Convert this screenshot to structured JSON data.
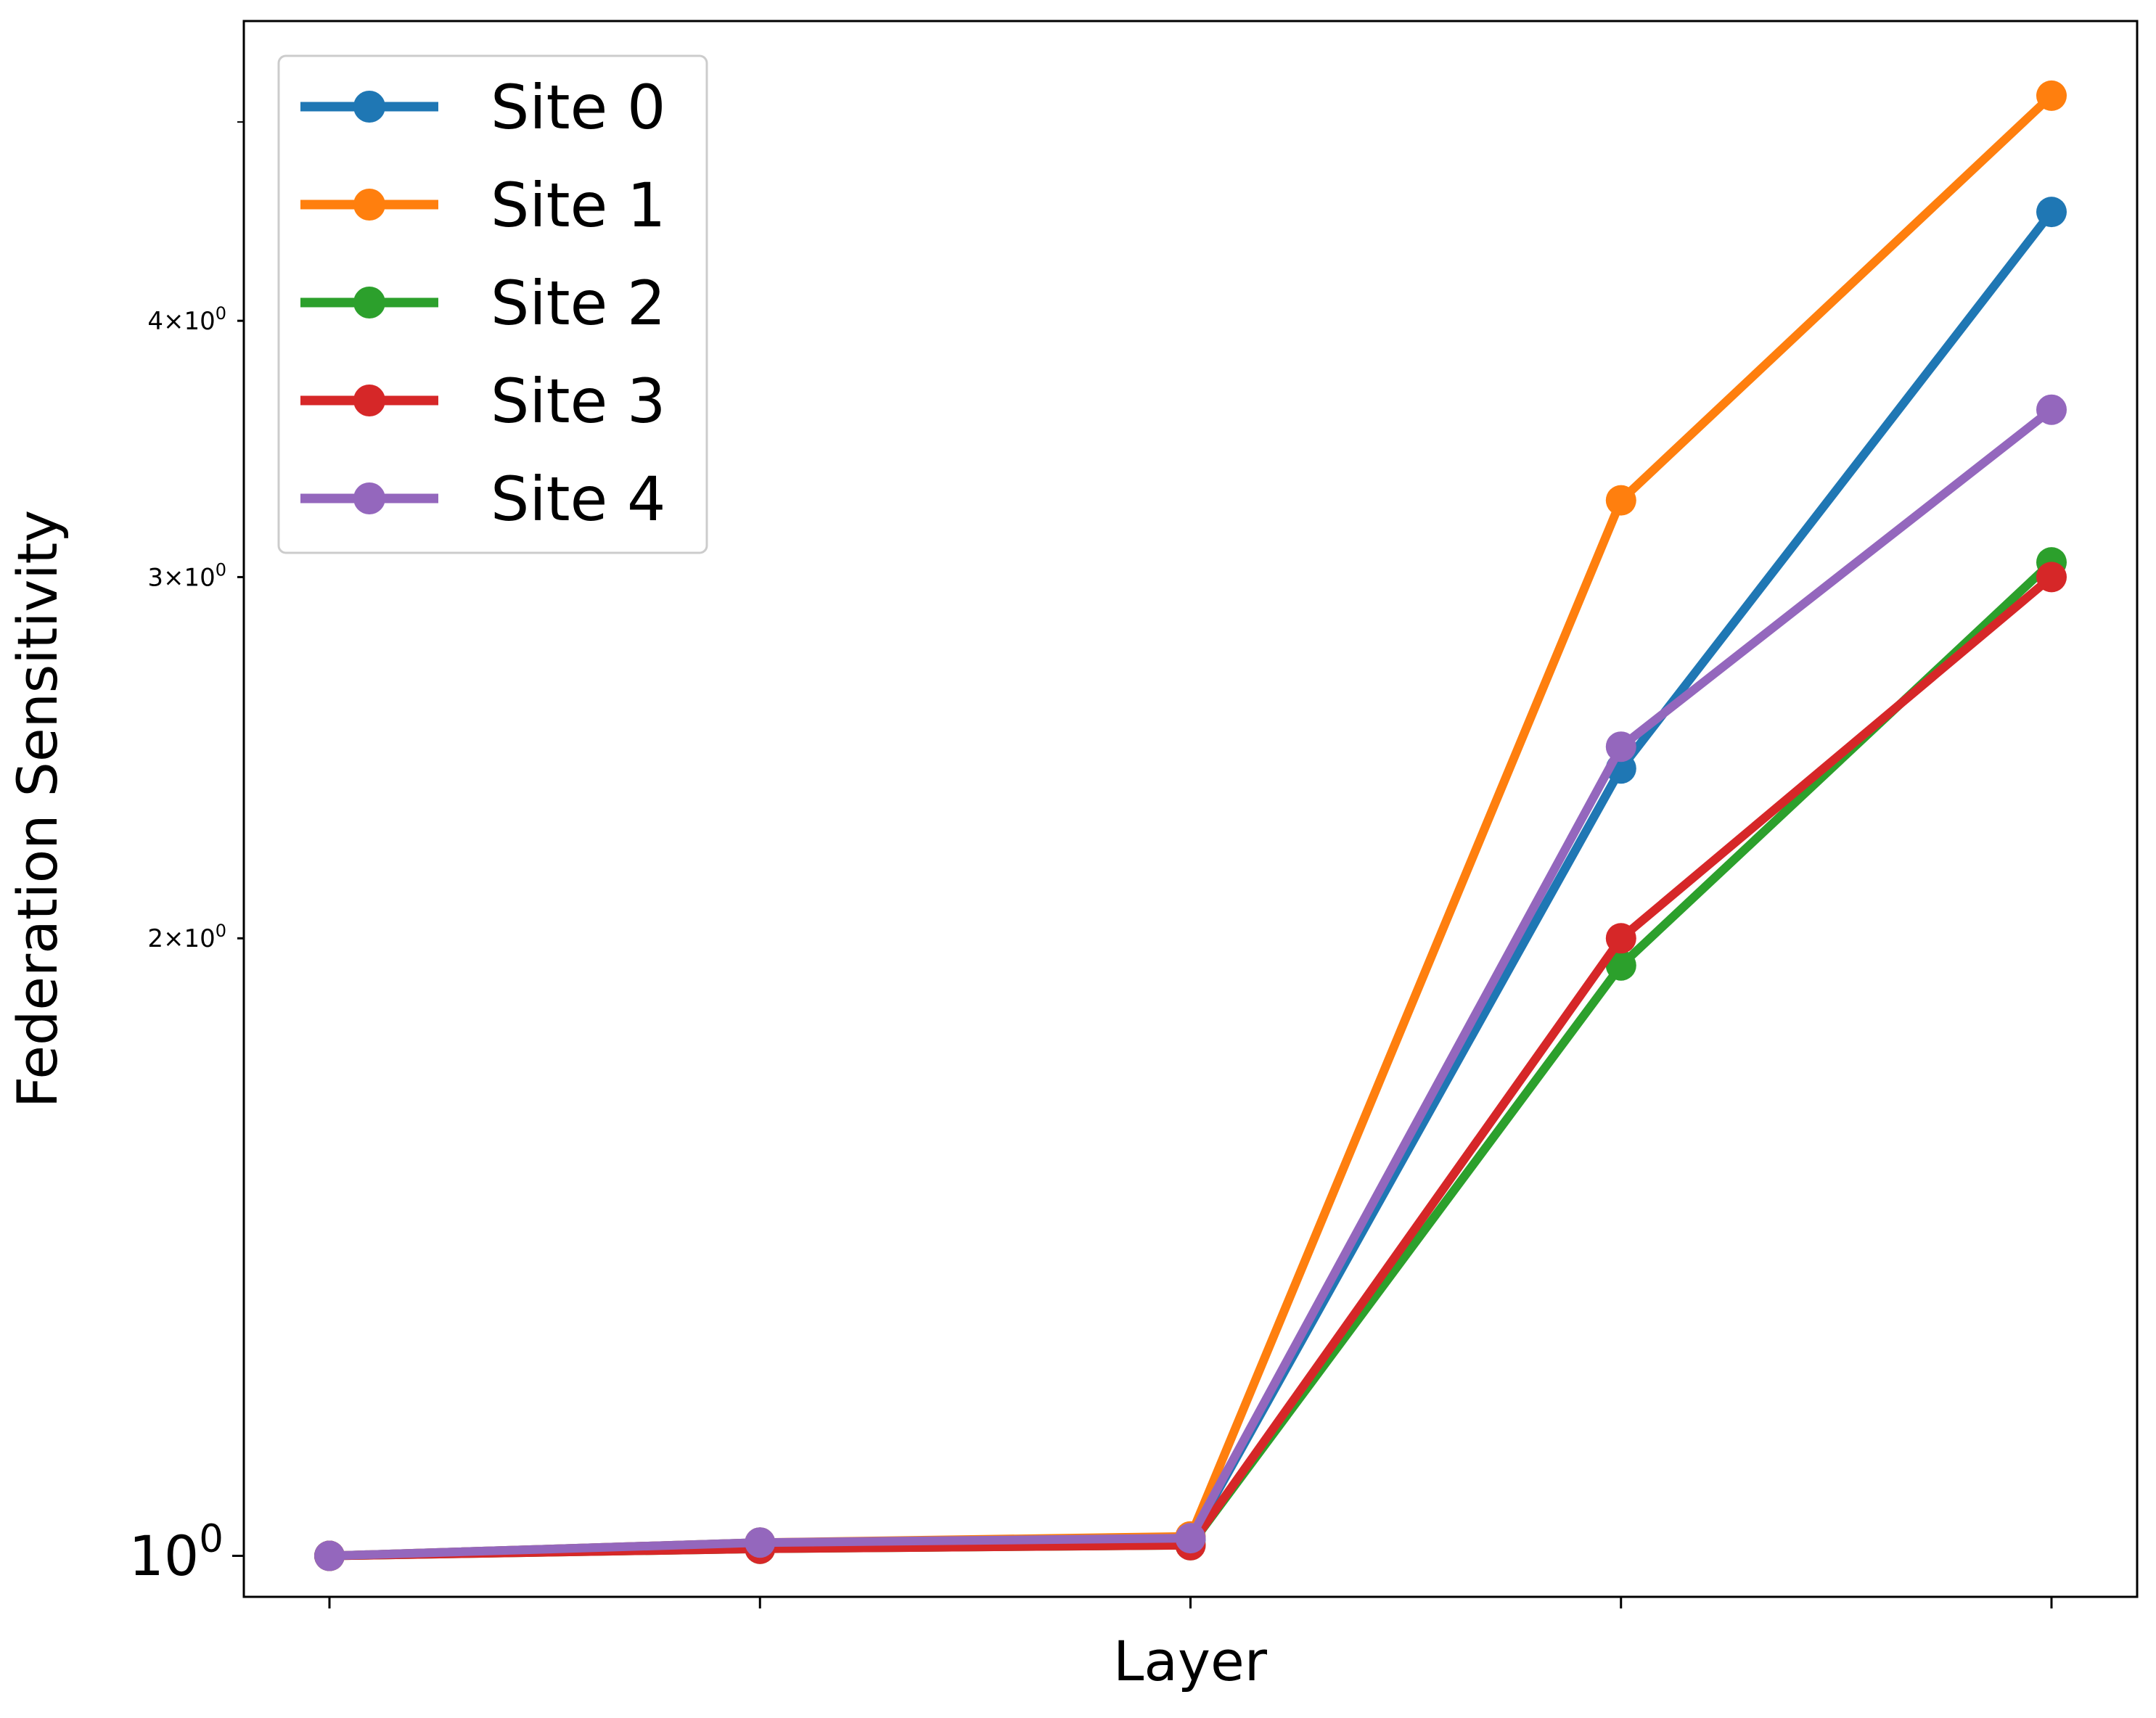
{
  "chart_data": {
    "type": "line",
    "title": "",
    "xlabel": "Layer",
    "ylabel": "Federation Sensitivity",
    "yscale": "log",
    "ylim": [
      0.955,
      5.6
    ],
    "x": [
      0,
      1,
      2,
      3,
      4
    ],
    "x_tick_labels": [
      "",
      "",
      "",
      "",
      ""
    ],
    "y_ticks": [
      {
        "value": 1,
        "base": "10",
        "exp": "0",
        "label_size": "large"
      },
      {
        "value": 2,
        "mult": "2",
        "base": "10",
        "exp": "0",
        "label_size": "small"
      },
      {
        "value": 3,
        "mult": "3",
        "base": "10",
        "exp": "0",
        "label_size": "small"
      },
      {
        "value": 4,
        "mult": "4",
        "base": "10",
        "exp": "0",
        "label_size": "small"
      }
    ],
    "y_minor_ticks": [
      5
    ],
    "grid": false,
    "legend_position": "top-left",
    "series": [
      {
        "name": "Site 0",
        "color": "#1f77b4",
        "values": [
          1.0,
          1.015,
          1.018,
          2.42,
          4.52
        ]
      },
      {
        "name": "Site 1",
        "color": "#ff7f0e",
        "values": [
          1.0,
          1.015,
          1.022,
          3.27,
          5.15
        ]
      },
      {
        "name": "Site 2",
        "color": "#2ca02c",
        "values": [
          1.0,
          1.008,
          1.012,
          1.94,
          3.05
        ]
      },
      {
        "name": "Site 3",
        "color": "#d62728",
        "values": [
          1.0,
          1.008,
          1.012,
          2.0,
          3.0
        ]
      },
      {
        "name": "Site 4",
        "color": "#9467bd",
        "values": [
          1.0,
          1.015,
          1.02,
          2.48,
          3.62
        ]
      }
    ]
  }
}
